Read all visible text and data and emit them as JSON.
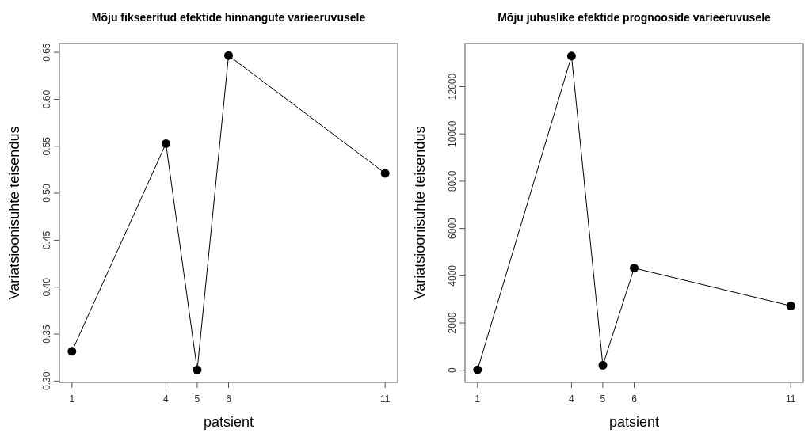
{
  "chart_data": [
    {
      "type": "line",
      "title": "Mõju fikseeritud efektide hinnangute varieeruvusele",
      "xlabel": "patsient",
      "ylabel": "Variatsioonisuhte teisendus",
      "x": [
        1,
        4,
        5,
        6,
        11
      ],
      "series": [
        {
          "color": "#000000",
          "values": [
            0.3316,
            0.5528,
            0.3118,
            0.6466,
            0.5212
          ]
        }
      ],
      "xlim": [
        0.6,
        11.4
      ],
      "xticks": [
        1,
        4,
        5,
        6,
        11
      ],
      "ylim": [
        0.2986,
        0.6594
      ],
      "yticks": [
        {
          "value": 0.3,
          "label": "0.30"
        },
        {
          "value": 0.35,
          "label": "0.35"
        },
        {
          "value": 0.4,
          "label": "0.40"
        },
        {
          "value": 0.45,
          "label": "0.45"
        },
        {
          "value": 0.5,
          "label": "0.50"
        },
        {
          "value": 0.55,
          "label": "0.55"
        },
        {
          "value": 0.6,
          "label": "0.60"
        },
        {
          "value": 0.65,
          "label": "0.65"
        }
      ],
      "marker": "circle",
      "line_style": "solid",
      "grid": false
    },
    {
      "type": "line",
      "title": "Mõju juhuslike efektide prognooside varieeruvusele",
      "xlabel": "patsient",
      "ylabel": "Variatsioonisuhte teisendus",
      "x": [
        1,
        4,
        5,
        6,
        11
      ],
      "series": [
        {
          "color": "#000000",
          "values": [
            20,
            13294,
            211,
            4324,
            2725
          ]
        }
      ],
      "xlim": [
        0.6,
        11.4
      ],
      "xticks": [
        1,
        4,
        5,
        6,
        11
      ],
      "ylim": [
        -511,
        13825
      ],
      "yticks": [
        0,
        2000,
        4000,
        6000,
        8000,
        10000,
        12000
      ],
      "marker": "circle",
      "line_style": "solid",
      "grid": false
    }
  ]
}
